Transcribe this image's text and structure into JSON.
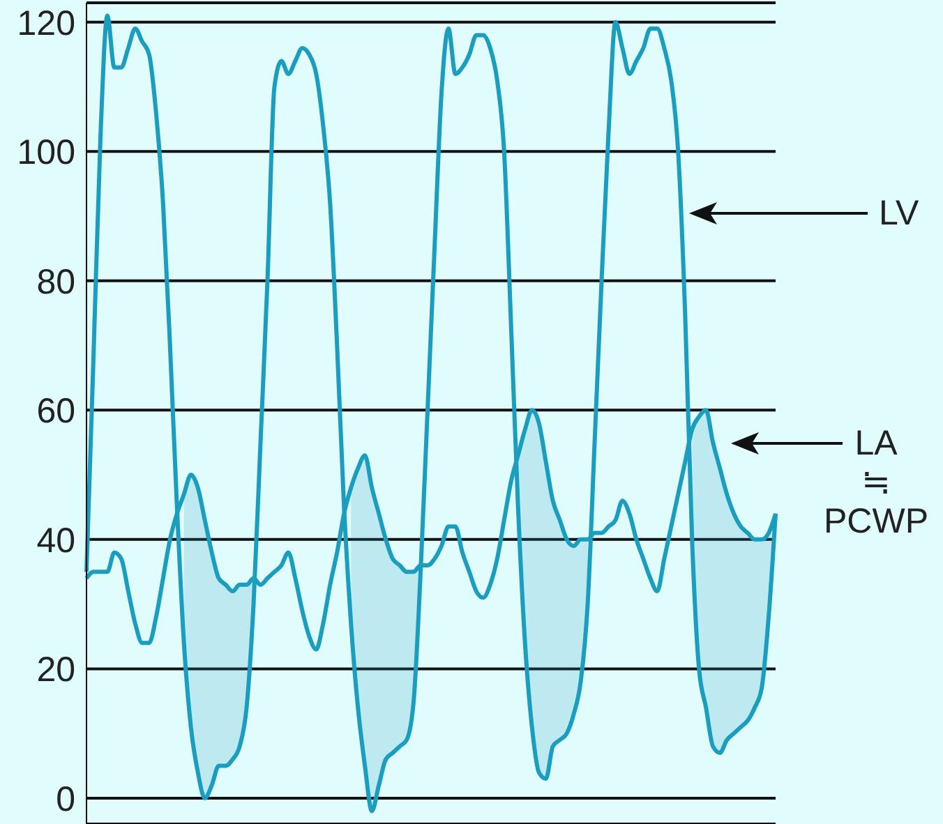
{
  "chart_data": {
    "type": "line",
    "categories": [
      null,
      null,
      null,
      null,
      null,
      null,
      null,
      null,
      null,
      null,
      null,
      null,
      null,
      null,
      null,
      null,
      null,
      null,
      null,
      null,
      null,
      null,
      null,
      null,
      null,
      null,
      null,
      null,
      null,
      null,
      null,
      null,
      null,
      null,
      null,
      null,
      null,
      null,
      null,
      null,
      null,
      null,
      null,
      null,
      null,
      null,
      null,
      null,
      null,
      null,
      null,
      null,
      null,
      null,
      null,
      null,
      null,
      null,
      null,
      null,
      null,
      null,
      null,
      null,
      null,
      null,
      null,
      null,
      null,
      null,
      null,
      null,
      null,
      null,
      null,
      null,
      null,
      null,
      null,
      null,
      null,
      null,
      null,
      null,
      null,
      null,
      null,
      null,
      null,
      null,
      null,
      null,
      null,
      null,
      null,
      null,
      null,
      null,
      null,
      null
    ],
    "series": [
      {
        "name": "LV",
        "color": "#1a9dbf",
        "values": [
          35,
          68,
          102,
          121,
          113,
          113,
          116,
          119,
          117,
          115,
          106,
          92,
          70,
          45,
          24,
          11,
          4,
          0,
          2,
          5,
          5,
          6,
          8,
          14,
          30,
          55,
          80,
          110,
          114,
          112,
          114,
          116,
          115,
          112,
          104,
          92,
          70,
          45,
          27,
          14,
          5,
          -2,
          2,
          6,
          7,
          8,
          9,
          15,
          35,
          60,
          85,
          109,
          119,
          112,
          113,
          115,
          118,
          118,
          116,
          111,
          100,
          73,
          45,
          24,
          11,
          4,
          3,
          8,
          9,
          10,
          13,
          18,
          30,
          55,
          80,
          103,
          120,
          116,
          112,
          114,
          116,
          119,
          119,
          116,
          111,
          100,
          75,
          40,
          20,
          14,
          8,
          7,
          9,
          10,
          11,
          12,
          14,
          17,
          28,
          44
        ]
      },
      {
        "name": "LA ≒ PCWP",
        "color": "#1a9dbf",
        "values": [
          34,
          35,
          35,
          35,
          38,
          37,
          32,
          27,
          24,
          24,
          28,
          34,
          40,
          44,
          47,
          50,
          48,
          43,
          38,
          34,
          33,
          32,
          33,
          33,
          34,
          33,
          34,
          35,
          36,
          38,
          34,
          29,
          25,
          23,
          27,
          33,
          38,
          44,
          48,
          51,
          53,
          48,
          44,
          40,
          37,
          36,
          35,
          35,
          36,
          36,
          37,
          39,
          42,
          42,
          38,
          35,
          32,
          31,
          33,
          37,
          43,
          49,
          53,
          57,
          60,
          58,
          52,
          46,
          43,
          40,
          39,
          40,
          40,
          41,
          41,
          42,
          43,
          46,
          44,
          40,
          37,
          34,
          32,
          37,
          42,
          47,
          52,
          57,
          59,
          60,
          55,
          51,
          47,
          44,
          42,
          41,
          40,
          40,
          41,
          44
        ],
        "lower": [
          null,
          null,
          null,
          null,
          null,
          null,
          null,
          null,
          null,
          null,
          null,
          null,
          null,
          null,
          24,
          11,
          4,
          0,
          2,
          5,
          5,
          6,
          8,
          14,
          30,
          null,
          null,
          null,
          null,
          null,
          null,
          null,
          null,
          null,
          null,
          null,
          null,
          null,
          27,
          14,
          5,
          -2,
          2,
          6,
          7,
          8,
          9,
          15,
          35,
          null,
          null,
          null,
          null,
          null,
          null,
          null,
          null,
          null,
          null,
          null,
          null,
          null,
          45,
          24,
          11,
          4,
          3,
          8,
          9,
          10,
          13,
          18,
          30,
          null,
          null,
          null,
          null,
          null,
          null,
          null,
          null,
          null,
          null,
          null,
          null,
          null,
          null,
          40,
          20,
          14,
          8,
          7,
          9,
          10,
          11,
          12,
          14,
          17,
          28,
          44
        ],
        "upper": [
          null,
          null,
          null,
          null,
          null,
          null,
          null,
          null,
          null,
          null,
          null,
          null,
          null,
          null,
          47,
          50,
          48,
          43,
          38,
          34,
          33,
          32,
          33,
          33,
          34,
          null,
          null,
          null,
          null,
          null,
          null,
          null,
          null,
          null,
          null,
          null,
          null,
          null,
          48,
          51,
          53,
          48,
          44,
          40,
          37,
          36,
          35,
          35,
          36,
          null,
          null,
          null,
          null,
          null,
          null,
          null,
          null,
          null,
          null,
          null,
          null,
          null,
          53,
          57,
          60,
          58,
          52,
          46,
          43,
          40,
          39,
          40,
          40,
          null,
          null,
          null,
          null,
          null,
          null,
          null,
          null,
          null,
          null,
          null,
          null,
          null,
          null,
          57,
          59,
          60,
          55,
          51,
          47,
          44,
          42,
          41,
          40,
          40,
          41,
          44
        ]
      }
    ],
    "ylim": [
      -4,
      123
    ],
    "yticks": [
      0,
      20,
      40,
      60,
      80,
      100,
      120
    ],
    "grid": "y",
    "marker": "none",
    "line_style": "solid"
  }
}
